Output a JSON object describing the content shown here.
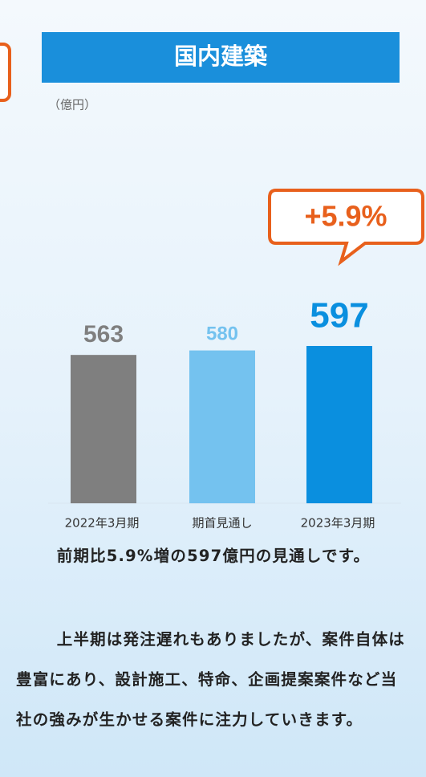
{
  "chart_data": {
    "type": "bar",
    "title": "国内建築",
    "unit_label": "（億円）",
    "categories": [
      "2022年3月期",
      "期首見通し",
      "2023年3月期"
    ],
    "values": [
      563,
      580,
      597
    ],
    "colors": [
      "#7f7f7f",
      "#74c2ef",
      "#0a8fdf"
    ],
    "annotation": "+5.9%"
  },
  "paragraphs": [
    "前期比5.9%増の597億円の見通しです。",
    "上半期は発注遅れもありましたが、案件自体は豊富にあり、設計施工、特命、企画提案案件など当社の強みが生かせる案件に注力していきます。"
  ]
}
